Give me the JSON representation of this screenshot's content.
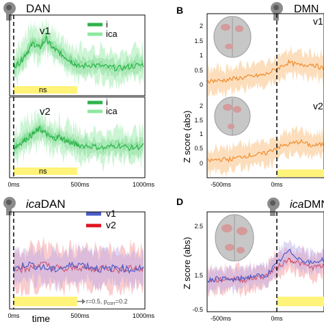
{
  "panels": {
    "A": {
      "title": "DAN"
    },
    "B": {
      "letter": "B",
      "title": "DMN",
      "ylabel": "Z score (abs)"
    },
    "C": {
      "title_italic": "ica",
      "title_rest": "DAN",
      "xlabel": "time",
      "annotation": "r=0.5, p",
      "annotation_sub": "corr",
      "annotation_tail": "=0.2"
    },
    "D": {
      "letter": "D",
      "title_italic": "ica",
      "title_rest": "DMN",
      "ylabel": "Z score (abs)"
    }
  },
  "colors": {
    "green_dark": "#2db34a",
    "green_light": "#8fe8a0",
    "orange": "#f08a2c",
    "orange_light": "#fbd3a6",
    "blue": "#4a5cc9",
    "red": "#e0141e",
    "ns_bar": "#fff37a"
  },
  "chart_data": [
    {
      "type": "line",
      "panel": "A-v1",
      "title": "v1",
      "series": [
        {
          "name": "i",
          "color": "#2db34a"
        },
        {
          "name": "ica",
          "color": "#8fe8a0"
        }
      ],
      "x": [
        0,
        50,
        100,
        150,
        200,
        250,
        300,
        350,
        400,
        450,
        500,
        600,
        700,
        800,
        900,
        1000
      ],
      "values": [
        0.3,
        0.35,
        0.45,
        0.55,
        0.5,
        0.6,
        0.5,
        0.45,
        0.4,
        0.35,
        0.3,
        0.32,
        0.3,
        0.28,
        0.3,
        0.32
      ],
      "significance_label": "ns",
      "significance_range": [
        0,
        500
      ]
    },
    {
      "type": "line",
      "panel": "A-v2",
      "title": "v2",
      "series": [
        {
          "name": "i",
          "color": "#2db34a"
        },
        {
          "name": "ica",
          "color": "#8fe8a0"
        }
      ],
      "x": [
        0,
        50,
        100,
        150,
        200,
        250,
        300,
        350,
        400,
        450,
        500,
        600,
        700,
        800,
        900,
        1000
      ],
      "values": [
        0.3,
        0.35,
        0.4,
        0.45,
        0.5,
        0.45,
        0.4,
        0.42,
        0.38,
        0.35,
        0.33,
        0.32,
        0.3,
        0.33,
        0.3,
        0.32
      ],
      "significance_label": "ns",
      "significance_range": [
        0,
        500
      ],
      "xticks": [
        "0ms",
        "500ms",
        "1000ms"
      ]
    },
    {
      "type": "line",
      "panel": "B-v1",
      "title": "v1",
      "ylim": [
        0,
        2
      ],
      "yticks": [
        "0",
        "0.5",
        "1",
        "1.5",
        "2"
      ],
      "x": [
        -500,
        -400,
        -300,
        -200,
        -100,
        0,
        100,
        200,
        300,
        400,
        500
      ],
      "values": [
        0.2,
        0.2,
        0.25,
        0.3,
        0.35,
        0.4,
        0.6,
        0.8,
        0.7,
        0.75,
        0.6
      ]
    },
    {
      "type": "line",
      "panel": "B-v2",
      "title": "v2",
      "ylim": [
        0,
        2
      ],
      "yticks": [
        "0",
        "0.5",
        "1",
        "1.5",
        "2"
      ],
      "x": [
        -500,
        -400,
        -300,
        -200,
        -100,
        0,
        100,
        200,
        300,
        400,
        500
      ],
      "values": [
        0.15,
        0.2,
        0.2,
        0.3,
        0.35,
        0.4,
        0.6,
        0.7,
        0.8,
        0.65,
        0.7
      ],
      "xticks": [
        "-500ms",
        "0ms"
      ]
    },
    {
      "type": "line",
      "panel": "C",
      "title": "icaDAN",
      "series": [
        {
          "name": "v1",
          "color": "#4a5cc9"
        },
        {
          "name": "v2",
          "color": "#e0141e"
        }
      ],
      "x": [
        0,
        100,
        200,
        300,
        400,
        500,
        600,
        700,
        800,
        900,
        1000
      ],
      "v1": [
        0.0,
        0.1,
        0.05,
        0.0,
        0.05,
        0.1,
        0.05,
        0.0,
        0.05,
        0.0,
        0.05
      ],
      "v2": [
        0.05,
        0.0,
        0.1,
        0.05,
        0.0,
        0.05,
        0.0,
        0.05,
        0.0,
        0.05,
        0.0
      ],
      "significance_range": [
        0,
        500
      ],
      "xticks": [
        "0ms",
        "500ms",
        "1000ms"
      ],
      "xlabel": "time"
    },
    {
      "type": "line",
      "panel": "D",
      "title": "icaDMN",
      "ylim": [
        0.5,
        2.5
      ],
      "yticks": [
        "0.5",
        "1.5",
        "2.5"
      ],
      "x": [
        -500,
        -400,
        -300,
        -200,
        -100,
        0,
        100,
        200,
        300,
        400,
        500
      ],
      "v1": [
        1.2,
        1.25,
        1.2,
        1.25,
        1.3,
        1.3,
        1.6,
        1.9,
        1.7,
        1.6,
        1.7
      ],
      "v2": [
        1.2,
        1.2,
        1.25,
        1.2,
        1.25,
        1.3,
        1.5,
        1.7,
        1.6,
        1.5,
        1.55
      ],
      "xticks": [
        "-500ms",
        "0ms"
      ]
    }
  ],
  "labels": {
    "v1": "v1",
    "v2": "v2",
    "i": "i",
    "ica": "ica",
    "ns": "ns",
    "t0": "0ms",
    "t500": "500ms",
    "t1000": "1000ms",
    "tneg500": "-500ms"
  }
}
